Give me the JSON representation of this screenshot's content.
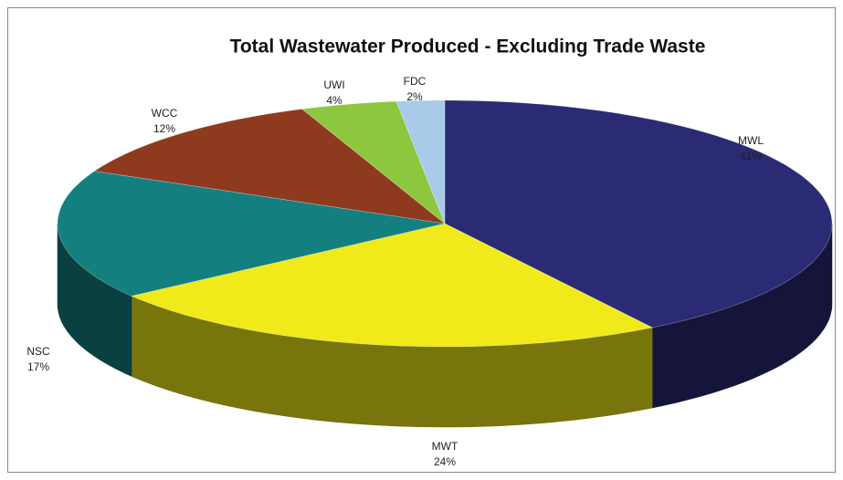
{
  "chart_data": {
    "type": "pie3d",
    "title": "Total Wastewater Produced - Excluding Trade Waste",
    "categories": [
      "MWL",
      "MWT",
      "NSC",
      "WCC",
      "UWI",
      "FDC"
    ],
    "values": [
      41,
      24,
      17,
      12,
      4,
      2
    ],
    "value_labels": [
      "41%",
      "24%",
      "17%",
      "12%",
      "4%",
      "2%"
    ],
    "colors": [
      "#2a2a75",
      "#f0ea1a",
      "#13807f",
      "#8e3a1f",
      "#8dc63f",
      "#a8cbea"
    ]
  }
}
